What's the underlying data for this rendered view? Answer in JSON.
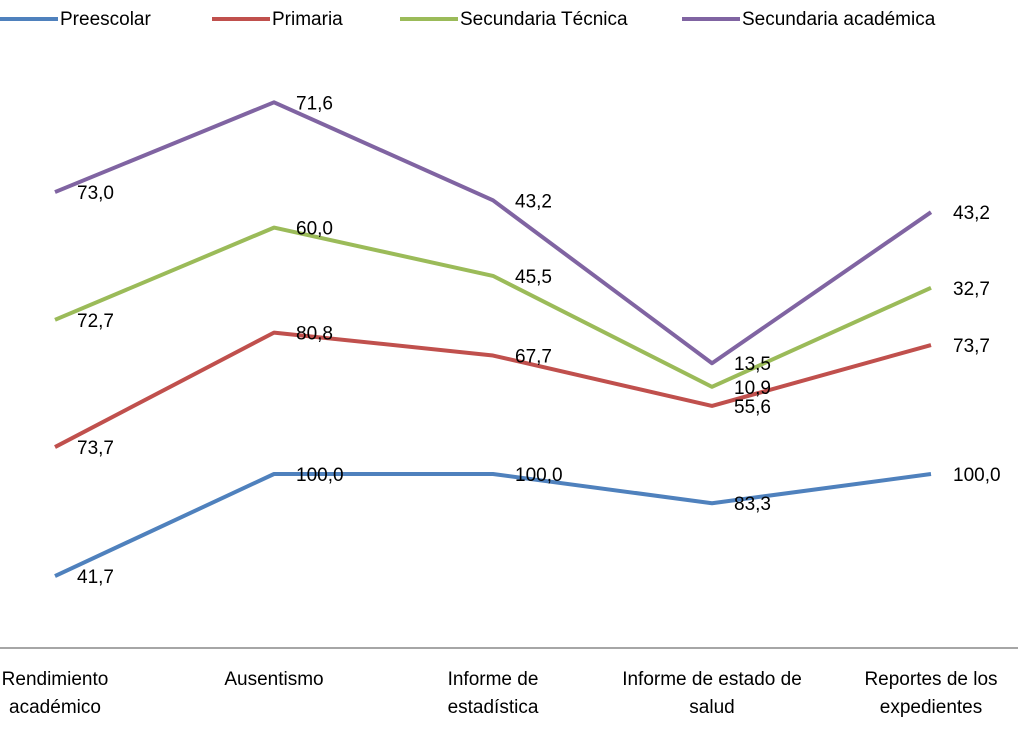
{
  "chart_data": {
    "type": "stacked_line",
    "categories": [
      "Rendimiento académico",
      "Ausentismo",
      "Informe de estadística",
      "Informe de estado de salud",
      "Reportes de los expedientes"
    ],
    "series": [
      {
        "name": "Preescolar",
        "color": "#4f81bd",
        "values": [
          41.7,
          100,
          100,
          83.3,
          100
        ],
        "value_labels": [
          "41,7",
          "100,0",
          "100,0",
          "83,3",
          "100,0"
        ]
      },
      {
        "name": "Primaria",
        "color": "#c0504d",
        "values": [
          73.7,
          80.8,
          67.7,
          55.6,
          73.7
        ],
        "value_labels": [
          "73,7",
          "80,8",
          "67,7",
          "55,6",
          "73,7"
        ]
      },
      {
        "name": "Secundaria Técnica",
        "color": "#9bbb59",
        "values": [
          72.7,
          60,
          45.5,
          10.9,
          32.7
        ],
        "value_labels": [
          "72,7",
          "60,0",
          "45,5",
          "10,9",
          "32,7"
        ]
      },
      {
        "name": "Secundaria académica",
        "color": "#8064a2",
        "values": [
          73.0,
          71.6,
          43.2,
          13.5,
          43.2
        ],
        "value_labels": [
          "73,0",
          "71,6",
          "43,2",
          "13,5",
          "43,2"
        ]
      }
    ],
    "ylim": [
      0,
      340
    ],
    "legend": "top"
  }
}
